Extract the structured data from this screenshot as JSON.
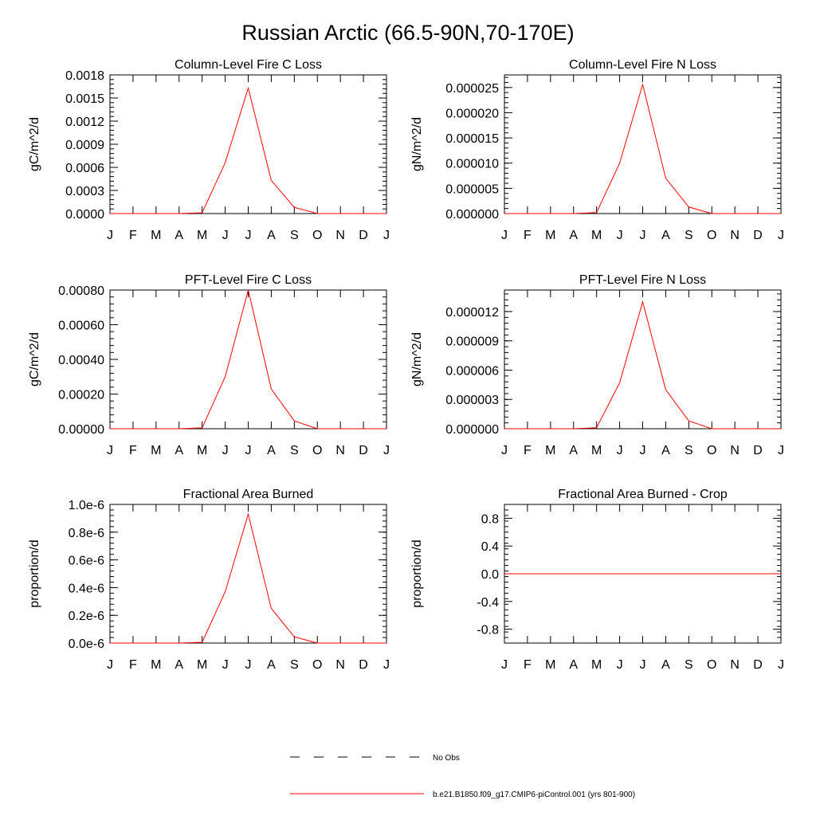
{
  "figure": {
    "title": "Russian Arctic (66.5-90N,70-170E)",
    "series_color": "#ff0000",
    "legend": [
      {
        "label": "No Obs",
        "style": "dashed",
        "color": "#000000"
      },
      {
        "label": "b.e21.B1850.f09_g17.CMIP6-piControl.001 (yrs 801-900)",
        "style": "solid",
        "color": "#ff0000"
      }
    ]
  },
  "chart_data": [
    {
      "type": "line",
      "title": "Column-Level Fire C Loss",
      "ylabel": "gC/m^2/d",
      "xlabel": "",
      "categories": [
        "J",
        "F",
        "M",
        "A",
        "M",
        "J",
        "J",
        "A",
        "S",
        "O",
        "N",
        "D",
        "J"
      ],
      "ylim": [
        0,
        0.0018
      ],
      "yticks": [
        "0.0000",
        "0.0003",
        "0.0006",
        "0.0009",
        "0.0012",
        "0.0015",
        "0.0018"
      ],
      "ytick_values": [
        0,
        0.0003,
        0.0006,
        0.0009,
        0.0012,
        0.0015,
        0.0018
      ],
      "series": [
        {
          "name": "b.e21.B1850.f09_g17.CMIP6-piControl.001 (yrs 801-900)",
          "values": [
            0,
            0,
            0,
            0,
            1e-05,
            0.00066,
            0.00163,
            0.00043,
            8e-05,
            0,
            0,
            0,
            0
          ]
        }
      ]
    },
    {
      "type": "line",
      "title": "Column-Level Fire N Loss",
      "ylabel": "gN/m^2/d",
      "xlabel": "",
      "categories": [
        "J",
        "F",
        "M",
        "A",
        "M",
        "J",
        "J",
        "A",
        "S",
        "O",
        "N",
        "D",
        "J"
      ],
      "ylim": [
        0,
        2.75e-05
      ],
      "yticks": [
        "0.000000",
        "0.000005",
        "0.000010",
        "0.000015",
        "0.000020",
        "0.000025"
      ],
      "ytick_values": [
        0,
        5e-06,
        1e-05,
        1.5e-05,
        2e-05,
        2.5e-05
      ],
      "series": [
        {
          "name": "b.e21.B1850.f09_g17.CMIP6-piControl.001 (yrs 801-900)",
          "values": [
            0,
            0,
            0,
            0,
            2e-07,
            1e-05,
            2.56e-05,
            7e-06,
            1.3e-06,
            0,
            0,
            0,
            0
          ]
        }
      ]
    },
    {
      "type": "line",
      "title": "PFT-Level Fire C Loss",
      "ylabel": "gC/m^2/d",
      "xlabel": "",
      "categories": [
        "J",
        "F",
        "M",
        "A",
        "M",
        "J",
        "J",
        "A",
        "S",
        "O",
        "N",
        "D",
        "J"
      ],
      "ylim": [
        0,
        0.0008
      ],
      "yticks": [
        "0.00000",
        "0.00020",
        "0.00040",
        "0.00060",
        "0.00080"
      ],
      "ytick_values": [
        0,
        0.0002,
        0.0004,
        0.0006,
        0.0008
      ],
      "series": [
        {
          "name": "b.e21.B1850.f09_g17.CMIP6-piControl.001 (yrs 801-900)",
          "values": [
            0,
            0,
            0,
            0,
            5e-06,
            0.0003,
            0.0008,
            0.00023,
            4.5e-05,
            0,
            0,
            0,
            0
          ]
        }
      ]
    },
    {
      "type": "line",
      "title": "PFT-Level Fire N Loss",
      "ylabel": "gN/m^2/d",
      "xlabel": "",
      "categories": [
        "J",
        "F",
        "M",
        "A",
        "M",
        "J",
        "J",
        "A",
        "S",
        "O",
        "N",
        "D",
        "J"
      ],
      "ylim": [
        0,
        1.42e-05
      ],
      "yticks": [
        "0.000000",
        "0.000003",
        "0.000006",
        "0.000009",
        "0.000012"
      ],
      "ytick_values": [
        0,
        3e-06,
        6e-06,
        9e-06,
        1.2e-05
      ],
      "series": [
        {
          "name": "b.e21.B1850.f09_g17.CMIP6-piControl.001 (yrs 801-900)",
          "values": [
            0,
            0,
            0,
            0,
            1e-07,
            4.7e-06,
            1.3e-05,
            4e-06,
            8e-07,
            0,
            0,
            0,
            0
          ]
        }
      ]
    },
    {
      "type": "line",
      "title": "Fractional Area Burned",
      "ylabel": "proportion/d",
      "xlabel": "",
      "categories": [
        "J",
        "F",
        "M",
        "A",
        "M",
        "J",
        "J",
        "A",
        "S",
        "O",
        "N",
        "D",
        "J"
      ],
      "ylim": [
        0,
        1e-06
      ],
      "yticks": [
        "0.0e-6",
        "0.2e-6",
        "0.4e-6",
        "0.6e-6",
        "0.8e-6",
        "1.0e-6"
      ],
      "ytick_values": [
        0,
        2e-07,
        4e-07,
        6e-07,
        8e-07,
        1e-06
      ],
      "series": [
        {
          "name": "b.e21.B1850.f09_g17.CMIP6-piControl.001 (yrs 801-900)",
          "values": [
            0,
            0,
            0,
            0,
            6e-09,
            3.7e-07,
            9.3e-07,
            2.5e-07,
            4.5e-08,
            0,
            0,
            0,
            0
          ]
        }
      ]
    },
    {
      "type": "line",
      "title": "Fractional Area Burned - Crop",
      "ylabel": "proportion/d",
      "xlabel": "",
      "categories": [
        "J",
        "F",
        "M",
        "A",
        "M",
        "J",
        "J",
        "A",
        "S",
        "O",
        "N",
        "D",
        "J"
      ],
      "ylim": [
        -1.0,
        1.0
      ],
      "yticks": [
        "-0.8",
        "-0.4",
        "0.0",
        "0.4",
        "0.8"
      ],
      "ytick_values": [
        -0.8,
        -0.4,
        0,
        0.4,
        0.8
      ],
      "series": [
        {
          "name": "b.e21.B1850.f09_g17.CMIP6-piControl.001 (yrs 801-900)",
          "values": [
            0,
            0,
            0,
            0,
            0,
            0,
            0,
            0,
            0,
            0,
            0,
            0,
            0
          ]
        }
      ]
    }
  ]
}
